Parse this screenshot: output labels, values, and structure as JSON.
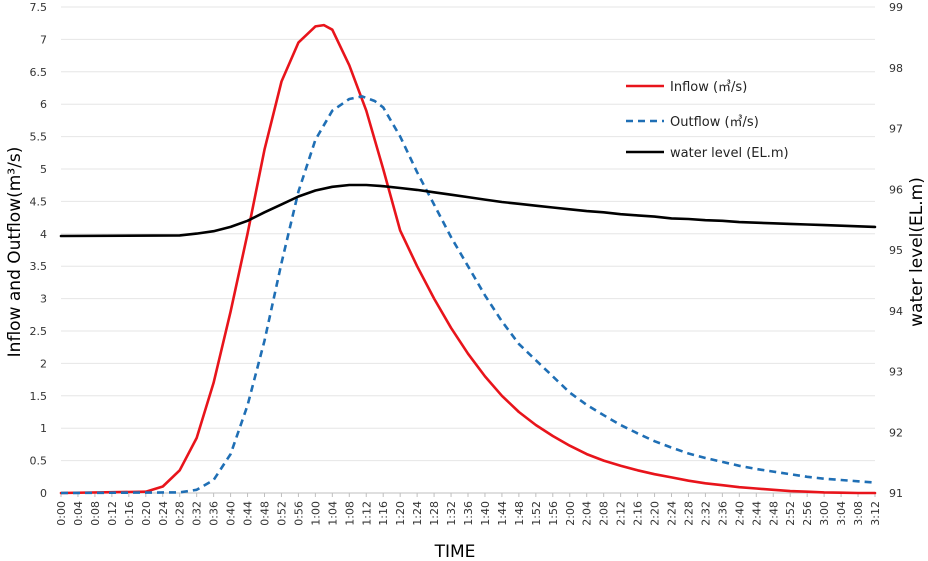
{
  "chart_data": {
    "type": "line",
    "xlabel": "TIME",
    "ylabel": "Inflow and Outflow(m³/s)",
    "y2label": "water level(EL.m)",
    "ylim": [
      0,
      7.5
    ],
    "y2lim": [
      91,
      99
    ],
    "y_ticks": [
      "0",
      "0.5",
      "1",
      "1.5",
      "2",
      "2.5",
      "3",
      "3.5",
      "4",
      "4.5",
      "5",
      "5.5",
      "6",
      "6.5",
      "7",
      "7.5"
    ],
    "y2_ticks": [
      "91",
      "92",
      "93",
      "94",
      "95",
      "96",
      "97",
      "98",
      "99"
    ],
    "x_ticks": [
      "0:00",
      "0:04",
      "0:08",
      "0:12",
      "0:16",
      "0:20",
      "0:24",
      "0:28",
      "0:32",
      "0:36",
      "0:40",
      "0:44",
      "0:48",
      "0:52",
      "0:56",
      "1:00",
      "1:04",
      "1:08",
      "1:12",
      "1:16",
      "1:20",
      "1:24",
      "1:28",
      "1:32",
      "1:36",
      "1:40",
      "1:44",
      "1:48",
      "1:52",
      "1:56",
      "2:00",
      "2:04",
      "2:08",
      "2:12",
      "2:16",
      "2:20",
      "2:24",
      "2:28",
      "2:32",
      "2:36",
      "2:40",
      "2:44",
      "2:48",
      "2:52",
      "2:56",
      "3:00",
      "3:04",
      "3:08",
      "3:12"
    ],
    "grid": true,
    "legend_position": "top-right",
    "series": [
      {
        "name": "Inflow (㎥/s)",
        "axis": "left",
        "color": "#e8141b",
        "style": "solid",
        "x": [
          "0:00",
          "0:20",
          "0:24",
          "0:28",
          "0:32",
          "0:36",
          "0:40",
          "0:44",
          "0:48",
          "0:52",
          "0:56",
          "1:00",
          "1:02",
          "1:04",
          "1:08",
          "1:12",
          "1:16",
          "1:20",
          "1:24",
          "1:28",
          "1:32",
          "1:36",
          "1:40",
          "1:44",
          "1:48",
          "1:52",
          "1:56",
          "2:00",
          "2:04",
          "2:08",
          "2:12",
          "2:16",
          "2:20",
          "2:24",
          "2:28",
          "2:32",
          "2:36",
          "2:40",
          "2:44",
          "2:48",
          "2:52",
          "2:56",
          "3:00",
          "3:04",
          "3:08",
          "3:12"
        ],
        "values": [
          0,
          0.02,
          0.1,
          0.35,
          0.85,
          1.7,
          2.8,
          4.0,
          5.3,
          6.35,
          6.95,
          7.2,
          7.22,
          7.15,
          6.6,
          5.9,
          5.0,
          4.05,
          3.5,
          3.0,
          2.55,
          2.15,
          1.8,
          1.5,
          1.25,
          1.05,
          0.88,
          0.73,
          0.6,
          0.5,
          0.42,
          0.35,
          0.29,
          0.24,
          0.19,
          0.15,
          0.12,
          0.09,
          0.07,
          0.05,
          0.03,
          0.02,
          0.01,
          0.005,
          0.0,
          0.0
        ]
      },
      {
        "name": "Outflow (㎥/s)",
        "axis": "left",
        "color": "#1f6fb5",
        "style": "dashed",
        "x": [
          "0:00",
          "0:28",
          "0:32",
          "0:36",
          "0:40",
          "0:44",
          "0:48",
          "0:52",
          "0:56",
          "1:00",
          "1:04",
          "1:08",
          "1:11",
          "1:14",
          "1:16",
          "1:20",
          "1:24",
          "1:28",
          "1:32",
          "1:36",
          "1:40",
          "1:44",
          "1:48",
          "1:52",
          "1:56",
          "2:00",
          "2:04",
          "2:08",
          "2:12",
          "2:16",
          "2:20",
          "2:24",
          "2:28",
          "2:32",
          "2:36",
          "2:40",
          "2:44",
          "2:48",
          "2:52",
          "2:56",
          "3:00",
          "3:04",
          "3:08",
          "3:12"
        ],
        "values": [
          0,
          0.01,
          0.05,
          0.2,
          0.6,
          1.35,
          2.35,
          3.55,
          4.65,
          5.45,
          5.9,
          6.08,
          6.12,
          6.05,
          5.95,
          5.5,
          4.95,
          4.45,
          3.95,
          3.5,
          3.05,
          2.65,
          2.3,
          2.05,
          1.8,
          1.55,
          1.36,
          1.2,
          1.05,
          0.92,
          0.8,
          0.7,
          0.61,
          0.54,
          0.48,
          0.42,
          0.37,
          0.33,
          0.29,
          0.25,
          0.22,
          0.2,
          0.18,
          0.16
        ]
      },
      {
        "name": "water level (EL.m)",
        "axis": "right",
        "color": "#000000",
        "style": "solid",
        "x": [
          "0:00",
          "0:28",
          "0:32",
          "0:36",
          "0:40",
          "0:44",
          "0:48",
          "0:52",
          "0:56",
          "1:00",
          "1:04",
          "1:08",
          "1:12",
          "1:16",
          "1:20",
          "1:24",
          "1:28",
          "1:32",
          "1:36",
          "1:40",
          "1:44",
          "1:48",
          "1:52",
          "1:56",
          "2:00",
          "2:04",
          "2:08",
          "2:12",
          "2:16",
          "2:20",
          "2:24",
          "2:28",
          "2:32",
          "2:36",
          "2:40",
          "2:44",
          "2:48",
          "2:52",
          "2:56",
          "3:00",
          "3:04",
          "3:08",
          "3:12"
        ],
        "values": [
          95.23,
          95.24,
          95.27,
          95.31,
          95.38,
          95.48,
          95.62,
          95.75,
          95.88,
          95.98,
          96.04,
          96.07,
          96.07,
          96.05,
          96.02,
          95.99,
          95.95,
          95.91,
          95.87,
          95.83,
          95.79,
          95.76,
          95.73,
          95.7,
          95.67,
          95.64,
          95.62,
          95.59,
          95.57,
          95.55,
          95.52,
          95.51,
          95.49,
          95.48,
          95.46,
          95.45,
          95.44,
          95.43,
          95.42,
          95.41,
          95.4,
          95.39,
          95.38
        ]
      }
    ]
  }
}
